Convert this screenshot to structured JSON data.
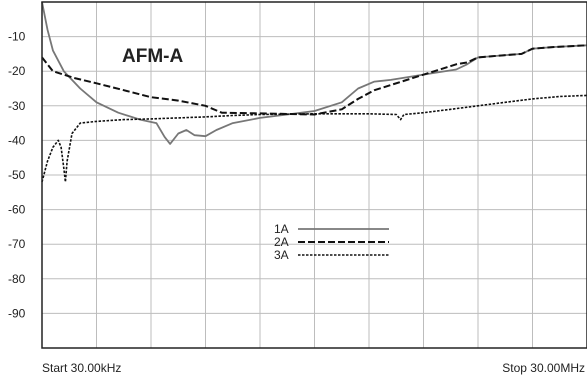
{
  "chart_data": {
    "type": "line",
    "title": "AFM-A",
    "xlabel": "",
    "ylabel": "",
    "xlim": [
      0,
      100
    ],
    "ylim": [
      -100,
      0
    ],
    "grid": true,
    "y_ticks": [
      "-10",
      "-20",
      "-30",
      "-40",
      "-50",
      "-60",
      "-70",
      "-80",
      "-90"
    ],
    "start_label": "Start 30.00kHz",
    "stop_label": "Stop 30.00MHz",
    "legend_position": "center",
    "series": [
      {
        "name": "1A",
        "color": "#777777",
        "style": "solid",
        "points": [
          [
            0,
            0
          ],
          [
            1,
            -8
          ],
          [
            2,
            -14
          ],
          [
            4,
            -20
          ],
          [
            7,
            -25
          ],
          [
            10,
            -29
          ],
          [
            14,
            -32
          ],
          [
            18,
            -34
          ],
          [
            21,
            -35
          ],
          [
            22.5,
            -39
          ],
          [
            23.5,
            -41
          ],
          [
            25,
            -38
          ],
          [
            26.5,
            -37
          ],
          [
            28,
            -38.5
          ],
          [
            30,
            -38.8
          ],
          [
            32,
            -37
          ],
          [
            35,
            -35
          ],
          [
            40,
            -33.5
          ],
          [
            45,
            -32.5
          ],
          [
            50,
            -31.5
          ],
          [
            55,
            -29
          ],
          [
            58,
            -25
          ],
          [
            61,
            -23
          ],
          [
            64,
            -22.5
          ],
          [
            68,
            -21.5
          ],
          [
            72,
            -20.5
          ],
          [
            76,
            -19.5
          ],
          [
            78,
            -18
          ],
          [
            80,
            -16
          ],
          [
            84,
            -15.5
          ],
          [
            88,
            -15
          ],
          [
            90,
            -13.5
          ],
          [
            94,
            -13
          ],
          [
            100,
            -12.5
          ]
        ]
      },
      {
        "name": "2A",
        "color": "#111111",
        "style": "dashed",
        "points": [
          [
            0,
            -16
          ],
          [
            2,
            -20
          ],
          [
            6,
            -22
          ],
          [
            10,
            -23.5
          ],
          [
            15,
            -25.5
          ],
          [
            20,
            -27.5
          ],
          [
            25,
            -28.5
          ],
          [
            30,
            -30
          ],
          [
            33,
            -32
          ],
          [
            40,
            -32.2
          ],
          [
            50,
            -32.5
          ],
          [
            55,
            -31
          ],
          [
            58,
            -28
          ],
          [
            61,
            -25.5
          ],
          [
            64,
            -24
          ],
          [
            68,
            -22
          ],
          [
            72,
            -20
          ],
          [
            76,
            -18
          ],
          [
            78,
            -17.5
          ],
          [
            80,
            -16
          ],
          [
            84,
            -15.5
          ],
          [
            88,
            -15
          ],
          [
            90,
            -13.5
          ],
          [
            94,
            -13
          ],
          [
            100,
            -12.5
          ]
        ]
      },
      {
        "name": "3A",
        "color": "#111111",
        "style": "dotted",
        "points": [
          [
            0,
            -52
          ],
          [
            1,
            -46
          ],
          [
            2,
            -42
          ],
          [
            3,
            -40
          ],
          [
            3.5,
            -42
          ],
          [
            4,
            -48
          ],
          [
            4.3,
            -52
          ],
          [
            4.6,
            -46
          ],
          [
            5.5,
            -38
          ],
          [
            7,
            -35
          ],
          [
            10,
            -34.5
          ],
          [
            15,
            -34
          ],
          [
            20,
            -33.8
          ],
          [
            25,
            -33.5
          ],
          [
            30,
            -33.2
          ],
          [
            35,
            -32.8
          ],
          [
            40,
            -32.5
          ],
          [
            50,
            -32.3
          ],
          [
            60,
            -32.3
          ],
          [
            65,
            -32.5
          ],
          [
            65.8,
            -34
          ],
          [
            66.4,
            -32.5
          ],
          [
            70,
            -32
          ],
          [
            75,
            -31
          ],
          [
            80,
            -30
          ],
          [
            85,
            -29
          ],
          [
            90,
            -28
          ],
          [
            95,
            -27.3
          ],
          [
            100,
            -27
          ]
        ]
      }
    ]
  }
}
